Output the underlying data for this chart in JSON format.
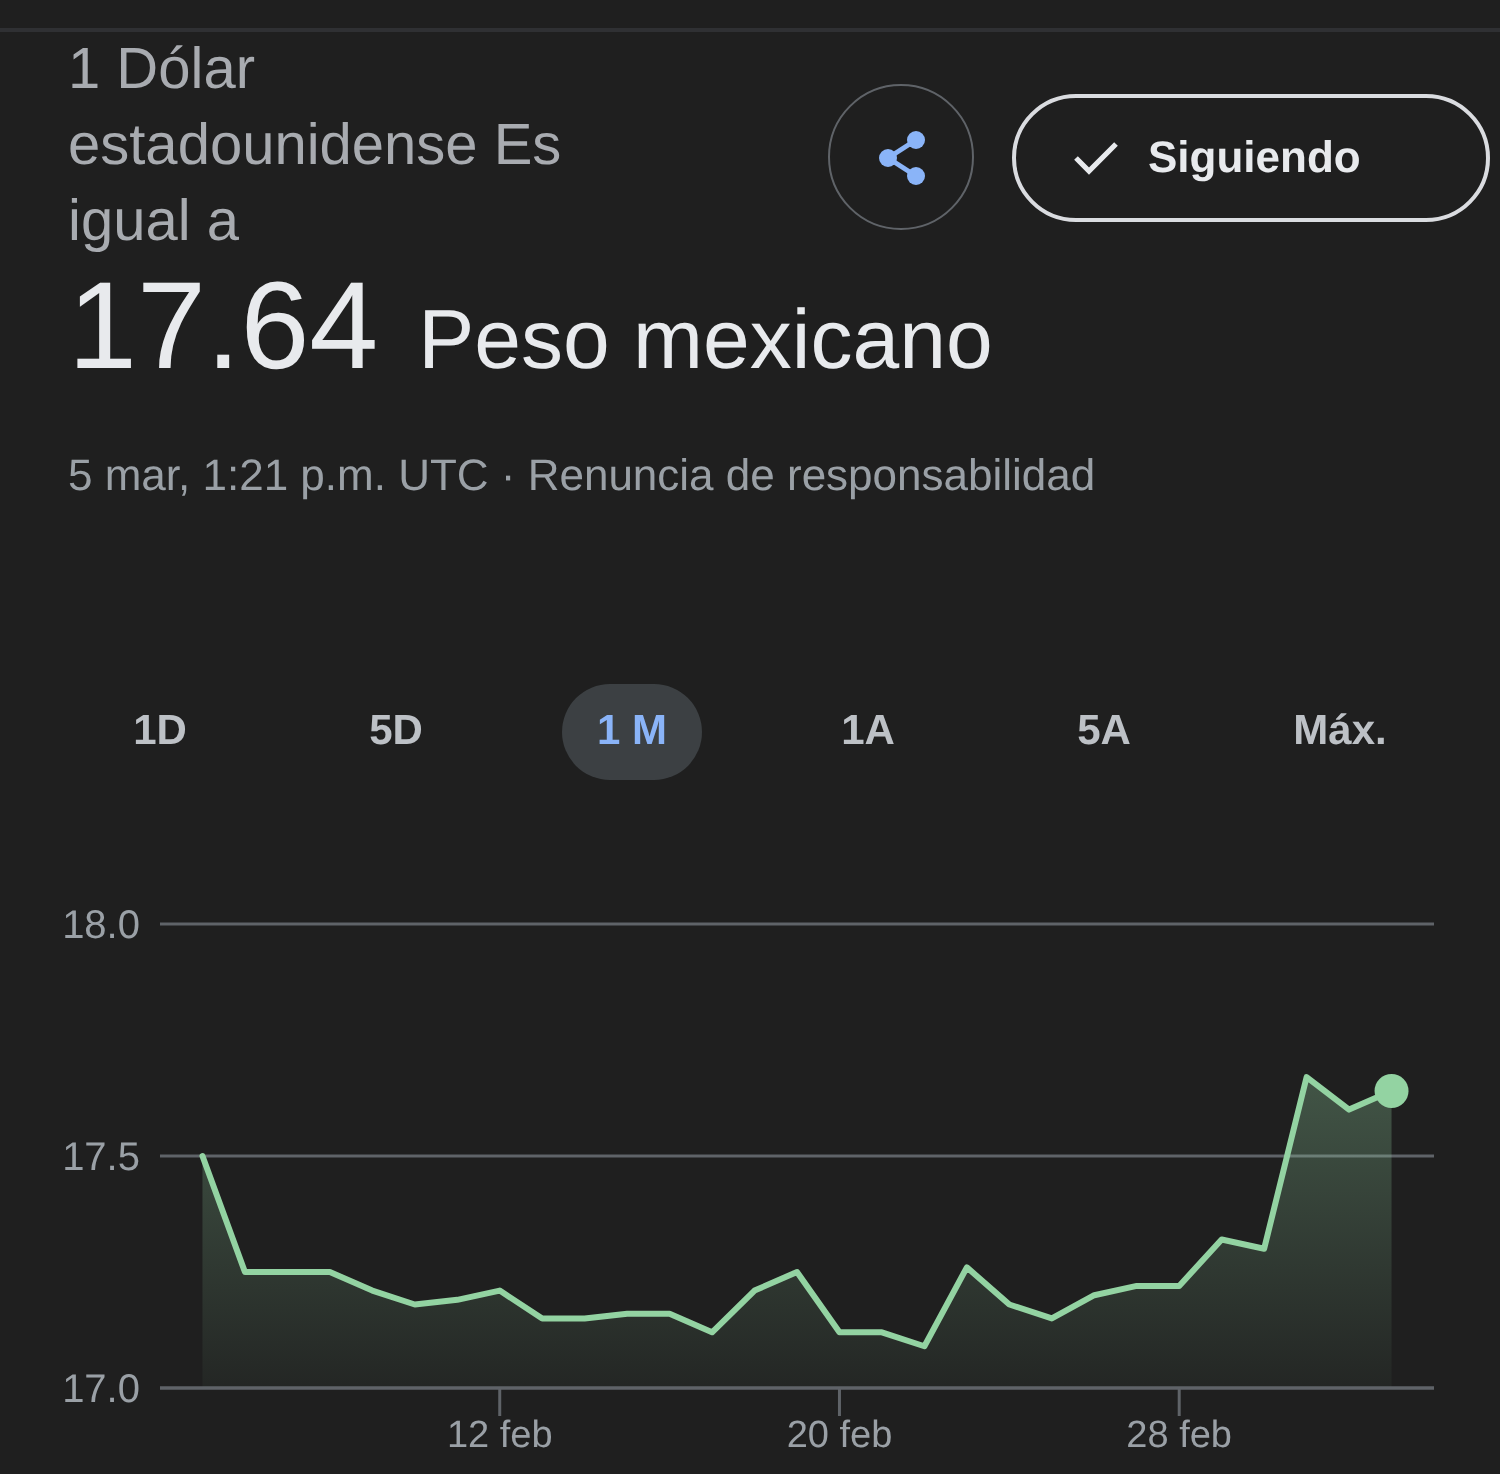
{
  "chart_data": {
    "type": "area",
    "title": "1 Dólar estadounidense Es igual a",
    "subtitle": "17.64 Peso mexicano",
    "x": [
      "--02-05",
      "--02-06",
      "--02-07",
      "--02-08",
      "--02-09",
      "--02-10",
      "--02-11",
      "--02-12",
      "--02-13",
      "--02-14",
      "--02-15",
      "--02-16",
      "--02-17",
      "--02-18",
      "--02-19",
      "--02-20",
      "--02-21",
      "--02-22",
      "--02-23",
      "--02-24",
      "--02-25",
      "--02-26",
      "--02-27",
      "--02-28",
      "--03-01",
      "--03-02",
      "--03-03",
      "--03-04",
      "--03-05"
    ],
    "series": [
      {
        "color": "#93d3a2",
        "values": [
          17.5,
          17.25,
          17.25,
          17.25,
          17.21,
          17.18,
          17.19,
          17.21,
          17.15,
          17.15,
          17.16,
          17.16,
          17.12,
          17.21,
          17.25,
          17.12,
          17.12,
          17.09,
          17.26,
          17.18,
          17.15,
          17.2,
          17.22,
          17.22,
          17.32,
          17.3,
          17.67,
          17.6,
          17.64
        ]
      },
      {
        "type": "scatter",
        "x": [
          "--03-05"
        ],
        "values": [
          17.64
        ],
        "color": "#93d3a2",
        "marker": "circle"
      }
    ],
    "xlim": [
      "--02-04",
      "--03-06"
    ],
    "xticks": [
      {
        "value": "--02-12",
        "label": "12 feb"
      },
      {
        "value": "--02-20",
        "label": "20 feb"
      },
      {
        "value": "--02-28",
        "label": "28 feb"
      }
    ],
    "ylim": [
      17,
      18
    ],
    "yticks": [
      {
        "value": 17,
        "label": "17.0"
      },
      {
        "value": 17.5,
        "label": "17.5"
      },
      {
        "value": 18,
        "label": "18.0"
      }
    ],
    "grid": "y",
    "legend": false,
    "annotations": [
      "Siguiendo",
      "1D",
      "5D",
      "1 M",
      "1A",
      "5A",
      "Máx.",
      "5 mar, 1:21 p.m. UTC · Renuncia de responsabilidad"
    ]
  }
}
